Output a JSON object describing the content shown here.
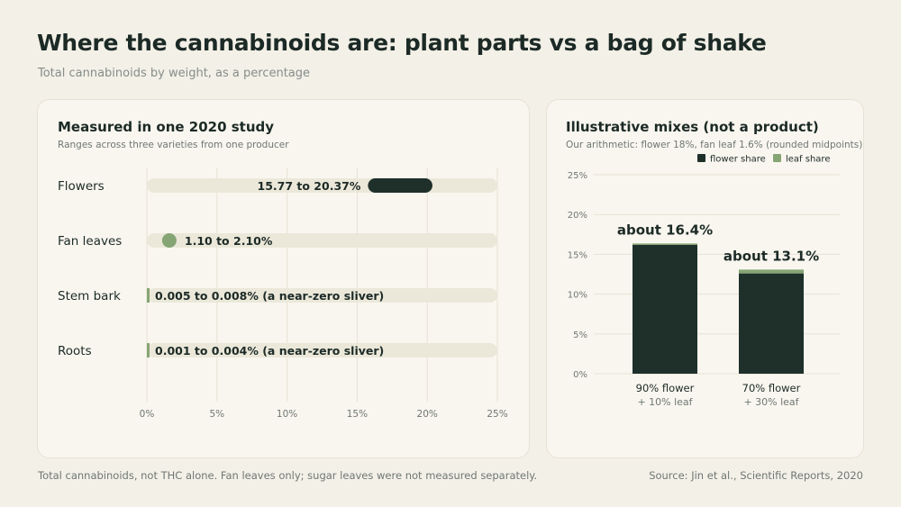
{
  "header": {
    "title": "Where the cannabinoids are: plant parts vs a bag of shake",
    "subtitle": "Total cannabinoids by weight, as a percentage"
  },
  "left_panel": {
    "title": "Measured in one 2020 study",
    "subtitle": "Ranges across three varieties from one producer"
  },
  "right_panel": {
    "title": "Illustrative mixes (not a product)",
    "subtitle": "Our arithmetic: flower 18%, fan leaf 1.6% (rounded midpoints)"
  },
  "footer": {
    "note": "Total cannabinoids, not THC alone. Fan leaves only; sugar leaves were not measured separately.",
    "source": "Source: Jin et al., Scientific Reports, 2020"
  },
  "colors": {
    "dark": "#1f302b",
    "green": "#86a574",
    "track": "#ebe8da",
    "grid": "#e6e2d6"
  },
  "chart_data": [
    {
      "type": "bar",
      "orientation": "horizontal range",
      "title": "Measured in one 2020 study",
      "categories": [
        "Flowers",
        "Fan leaves",
        "Stem bark",
        "Roots"
      ],
      "ranges": [
        {
          "low": 15.77,
          "high": 20.37,
          "label": "15.77 to 20.37%"
        },
        {
          "low": 1.1,
          "high": 2.1,
          "label": "1.10 to 2.10%"
        },
        {
          "low": 0.005,
          "high": 0.008,
          "label": "0.005 to 0.008% (a near-zero sliver)"
        },
        {
          "low": 0.001,
          "high": 0.004,
          "label": "0.001 to 0.004% (a near-zero sliver)"
        }
      ],
      "xlim": [
        0,
        25
      ],
      "xticks": [
        0,
        5,
        10,
        15,
        20,
        25
      ],
      "xtick_labels": [
        "0%",
        "5%",
        "10%",
        "15%",
        "20%",
        "25%"
      ],
      "grid": true
    },
    {
      "type": "bar",
      "stacked": true,
      "title": "Illustrative mixes (not a product)",
      "categories": [
        "90% flower",
        "70% flower"
      ],
      "category_sublabels": [
        "+ 10% leaf",
        "+ 30% leaf"
      ],
      "series": [
        {
          "name": "flower share",
          "values": [
            16.2,
            12.6
          ]
        },
        {
          "name": "leaf share",
          "values": [
            0.16,
            0.48
          ]
        }
      ],
      "totals_labels": [
        "about 16.4%",
        "about 13.1%"
      ],
      "ylim": [
        0,
        25
      ],
      "yticks": [
        0,
        5,
        10,
        15,
        20,
        25
      ],
      "ytick_labels": [
        "0%",
        "5%",
        "10%",
        "15%",
        "20%",
        "25%"
      ],
      "legend": "top-right",
      "grid": true
    }
  ]
}
